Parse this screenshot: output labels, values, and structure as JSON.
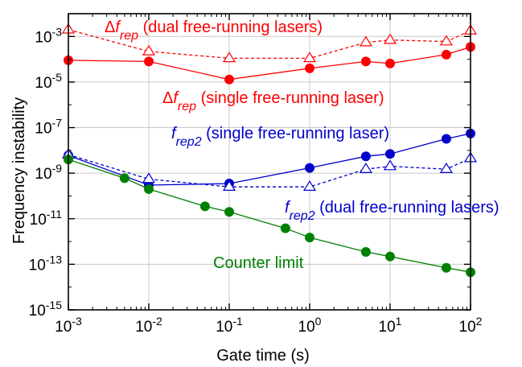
{
  "chart_data": {
    "type": "line",
    "xlabel": "Gate time (s)",
    "ylabel": "Frequency instability",
    "x_scale": "log",
    "y_scale": "log",
    "xlim": [
      0.001,
      100
    ],
    "ylim": [
      1e-15,
      0.01
    ],
    "grid": true,
    "x_ticks": [
      {
        "value": 0.001,
        "base": "10",
        "exp": "-3"
      },
      {
        "value": 0.01,
        "base": "10",
        "exp": "-2"
      },
      {
        "value": 0.1,
        "base": "10",
        "exp": "-1"
      },
      {
        "value": 1,
        "base": "10",
        "exp": "0"
      },
      {
        "value": 10,
        "base": "10",
        "exp": "1"
      },
      {
        "value": 100,
        "base": "10",
        "exp": "2"
      }
    ],
    "y_ticks": [
      {
        "value": 1e-15,
        "base": "10",
        "exp": "-15"
      },
      {
        "value": 1e-13,
        "base": "10",
        "exp": "-13"
      },
      {
        "value": 1e-11,
        "base": "10",
        "exp": "-11"
      },
      {
        "value": 1e-09,
        "base": "10",
        "exp": "-9"
      },
      {
        "value": 1e-07,
        "base": "10",
        "exp": "-7"
      },
      {
        "value": 1e-05,
        "base": "10",
        "exp": "-5"
      },
      {
        "value": 0.001,
        "base": "10",
        "exp": "-3"
      }
    ],
    "series": [
      {
        "key": "dfrep_dual",
        "color": "#ff0000",
        "line": "dashed",
        "marker": "open-triangle",
        "x": [
          0.001,
          0.01,
          0.1,
          1,
          5,
          10,
          50,
          100
        ],
        "y": [
          0.002,
          0.00022,
          0.00011,
          0.00011,
          0.00055,
          0.0007,
          0.0006,
          0.0018
        ]
      },
      {
        "key": "dfrep_single",
        "color": "#ff0000",
        "line": "solid",
        "marker": "filled-circle",
        "x": [
          0.001,
          0.01,
          0.1,
          1,
          5,
          10,
          50,
          100
        ],
        "y": [
          9e-05,
          8e-05,
          1.3e-05,
          4e-05,
          8e-05,
          6.5e-05,
          0.00016,
          0.00035
        ]
      },
      {
        "key": "frep2_single",
        "color": "#0000cc",
        "line": "solid",
        "marker": "filled-circle",
        "x": [
          0.001,
          0.01,
          0.1,
          1,
          5,
          10,
          50,
          100
        ],
        "y": [
          6e-09,
          3e-10,
          3.5e-10,
          1.7e-09,
          5.5e-09,
          7e-09,
          3.2e-08,
          5.5e-08
        ]
      },
      {
        "key": "frep2_dual",
        "color": "#0000cc",
        "line": "dashed",
        "marker": "open-triangle",
        "x": [
          0.001,
          0.01,
          0.1,
          1,
          5,
          10,
          50,
          100
        ],
        "y": [
          6.5e-09,
          5.5e-10,
          2.5e-10,
          2.5e-10,
          1.5e-09,
          2e-09,
          1.5e-09,
          4.5e-09
        ]
      },
      {
        "key": "counter_limit",
        "color": "#008000",
        "line": "solid",
        "marker": "filled-circle",
        "x": [
          0.001,
          0.005,
          0.01,
          0.05,
          0.1,
          0.5,
          1,
          5,
          10,
          50,
          100
        ],
        "y": [
          4e-09,
          6e-10,
          2e-10,
          3.5e-11,
          2e-11,
          3.8e-12,
          1.5e-12,
          3.5e-13,
          2.2e-13,
          7e-14,
          4.5e-14
        ]
      }
    ],
    "annotations": [
      {
        "key": "dfrep_dual",
        "color": "#ff0000",
        "prefix": "Δ",
        "sym": "f",
        "sub": "rep",
        "text": " (dual free-running lasers)"
      },
      {
        "key": "dfrep_single",
        "color": "#ff0000",
        "prefix": "Δ",
        "sym": "f",
        "sub": "rep",
        "text": " (single free-running laser)"
      },
      {
        "key": "frep2_single",
        "color": "#0000cc",
        "prefix": "",
        "sym": "f",
        "sub": "rep2",
        "text": " (single free-running laser)"
      },
      {
        "key": "frep2_dual",
        "color": "#0000cc",
        "prefix": "",
        "sym": "f",
        "sub": "rep2",
        "text": " (dual free-running lasers)"
      },
      {
        "key": "counter_limit",
        "color": "#008000",
        "prefix": "",
        "sym": "",
        "sub": "",
        "text": "Counter limit"
      }
    ]
  }
}
